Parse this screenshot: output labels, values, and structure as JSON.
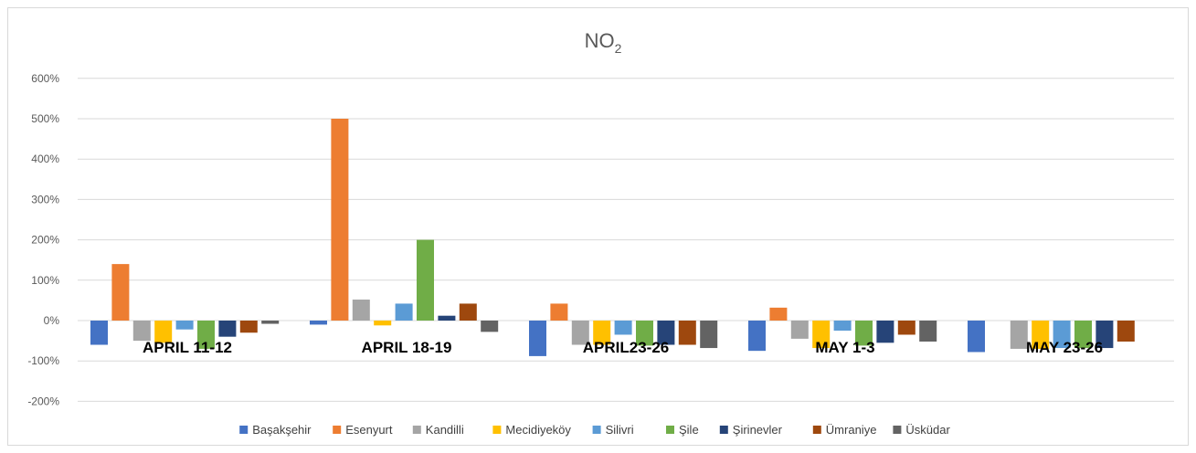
{
  "chart_data": {
    "type": "bar",
    "title": "NO",
    "title_subscript": "2",
    "categories": [
      "APRIL 11-12",
      "APRIL 18-19",
      "APRIL23-26",
      "MAY 1-3",
      "MAY 23-26"
    ],
    "ylim": [
      -200,
      600
    ],
    "yticks": [
      600,
      500,
      400,
      300,
      200,
      100,
      0,
      -100,
      -200
    ],
    "ytick_labels": [
      "600%",
      "500%",
      "400%",
      "300%",
      "200%",
      "100%",
      "0%",
      "-100%",
      "-200%"
    ],
    "grid": true,
    "legend_position": "bottom",
    "series": [
      {
        "name": "Başakşehir",
        "color": "#4472c4",
        "values": [
          -60,
          -10,
          -88,
          -75,
          -78
        ]
      },
      {
        "name": "Esenyurt",
        "color": "#ed7d31",
        "values": [
          140,
          500,
          42,
          32,
          null
        ]
      },
      {
        "name": "Kandilli",
        "color": "#a5a5a5",
        "values": [
          -50,
          52,
          -60,
          -45,
          -70
        ]
      },
      {
        "name": "Mecidiyeköy",
        "color": "#ffc000",
        "values": [
          -55,
          -12,
          -60,
          -68,
          -70
        ]
      },
      {
        "name": "Silivri",
        "color": "#5b9bd5",
        "values": [
          -22,
          42,
          -35,
          -25,
          -68
        ]
      },
      {
        "name": "Şile",
        "color": "#70ad47",
        "values": [
          -70,
          200,
          -62,
          -62,
          -68
        ]
      },
      {
        "name": "Şirinevler",
        "color": "#264478",
        "values": [
          -40,
          12,
          -60,
          -55,
          -68
        ]
      },
      {
        "name": "Ümraniye",
        "color": "#9e480e",
        "values": [
          -30,
          42,
          -60,
          -35,
          -52
        ]
      },
      {
        "name": "Üsküdar",
        "color": "#636363",
        "values": [
          -8,
          -28,
          -68,
          -52,
          null
        ]
      }
    ]
  }
}
